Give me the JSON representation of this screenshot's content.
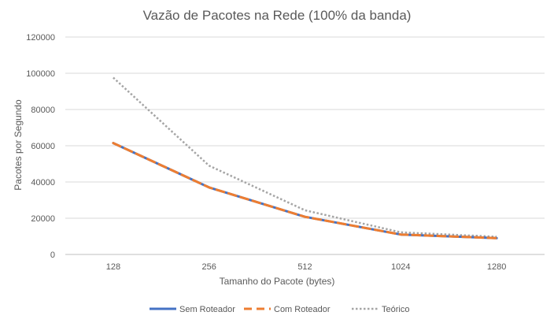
{
  "chart_data": {
    "type": "line",
    "title": "Vazão de Pacotes na Rede (100% da banda)",
    "xlabel": "Tamanho do Pacote (bytes)",
    "ylabel": "Pacotes por Segundo",
    "categories": [
      "128",
      "256",
      "512",
      "1024",
      "1280"
    ],
    "ylim": [
      0,
      120000
    ],
    "yticks": [
      0,
      20000,
      40000,
      60000,
      80000,
      100000,
      120000
    ],
    "grid": true,
    "legend_position": "bottom",
    "series": [
      {
        "name": "Sem Roteador",
        "values": [
          61500,
          37000,
          20800,
          11000,
          9000
        ],
        "color": "#4472C4",
        "style": "solid"
      },
      {
        "name": "Com Roteador",
        "values": [
          61500,
          37000,
          20800,
          11000,
          9000
        ],
        "color": "#ED7D31",
        "style": "dashed"
      },
      {
        "name": "Teórico",
        "values": [
          97600,
          49000,
          24400,
          12200,
          9800
        ],
        "color": "#A5A5A5",
        "style": "dotted"
      }
    ]
  }
}
